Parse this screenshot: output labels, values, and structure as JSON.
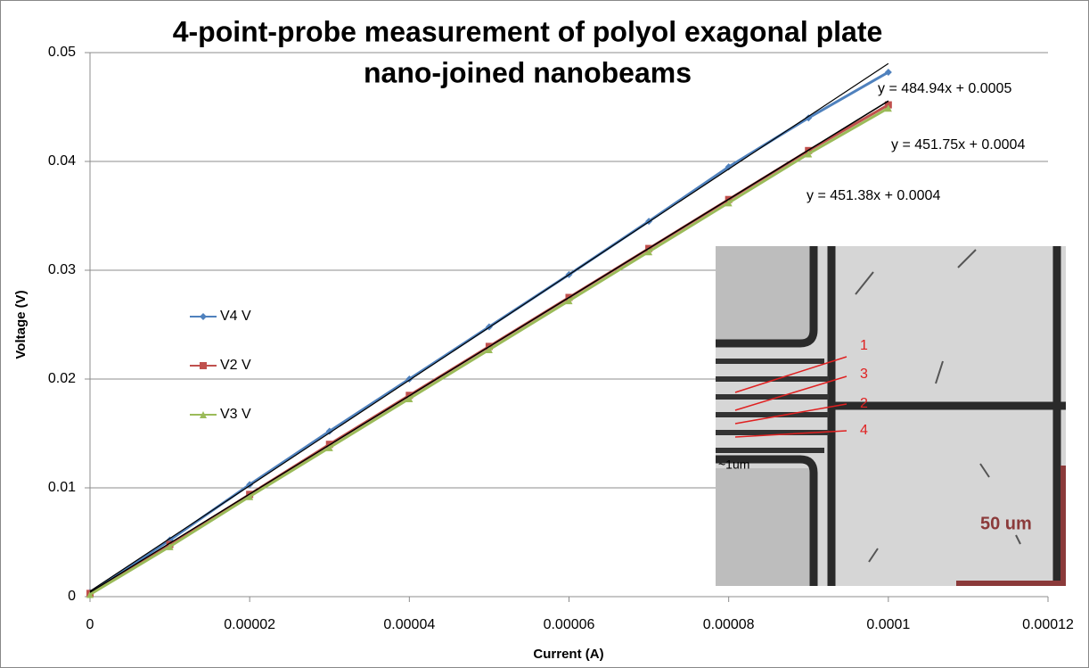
{
  "chart_data": {
    "type": "line",
    "title": [
      "4-point-probe measurement of polyol exagonal plate",
      "nano-joined nanobeams"
    ],
    "x_label": "Current (A)",
    "y_label": "Voltage (V)",
    "x": [
      0,
      1e-05,
      2e-05,
      3e-05,
      4e-05,
      5e-05,
      6e-05,
      7e-05,
      8e-05,
      9e-05,
      0.0001
    ],
    "series": [
      {
        "name": "V4 V",
        "color": "#4f81bd",
        "marker": "diamond",
        "values": [
          0.0004,
          0.0052,
          0.0103,
          0.0152,
          0.02,
          0.0248,
          0.0296,
          0.0345,
          0.0395,
          0.044,
          0.0482
        ]
      },
      {
        "name": "V2 V",
        "color": "#c0504d",
        "marker": "square",
        "values": [
          0.0003,
          0.0048,
          0.0094,
          0.014,
          0.0185,
          0.023,
          0.0275,
          0.032,
          0.0365,
          0.041,
          0.0452
        ]
      },
      {
        "name": "V3 V",
        "color": "#9bbb59",
        "marker": "triangle",
        "values": [
          0.0002,
          0.0046,
          0.0092,
          0.0137,
          0.0182,
          0.0227,
          0.0272,
          0.0317,
          0.0362,
          0.0407,
          0.0449
        ]
      }
    ],
    "trendlines": [
      {
        "label": "y = 484.94x + 0.0005",
        "slope": 484.94,
        "intercept": 0.0005
      },
      {
        "label": "y = 451.75x + 0.0004",
        "slope": 451.75,
        "intercept": 0.0004
      },
      {
        "label": "y = 451.38x + 0.0004",
        "slope": 451.38,
        "intercept": 0.0004
      }
    ],
    "xlim": [
      0,
      0.00012
    ],
    "ylim": [
      0,
      0.05
    ],
    "xticks": [
      0,
      2e-05,
      4e-05,
      6e-05,
      8e-05,
      0.0001,
      0.00012
    ],
    "yticks": [
      0,
      0.01,
      0.02,
      0.03,
      0.04,
      0.05
    ],
    "grid": true,
    "legend": "left",
    "inset": {
      "labels": [
        "1",
        "3",
        "2",
        "4"
      ],
      "size_label": "~1um",
      "scale_label": "50 um"
    }
  }
}
